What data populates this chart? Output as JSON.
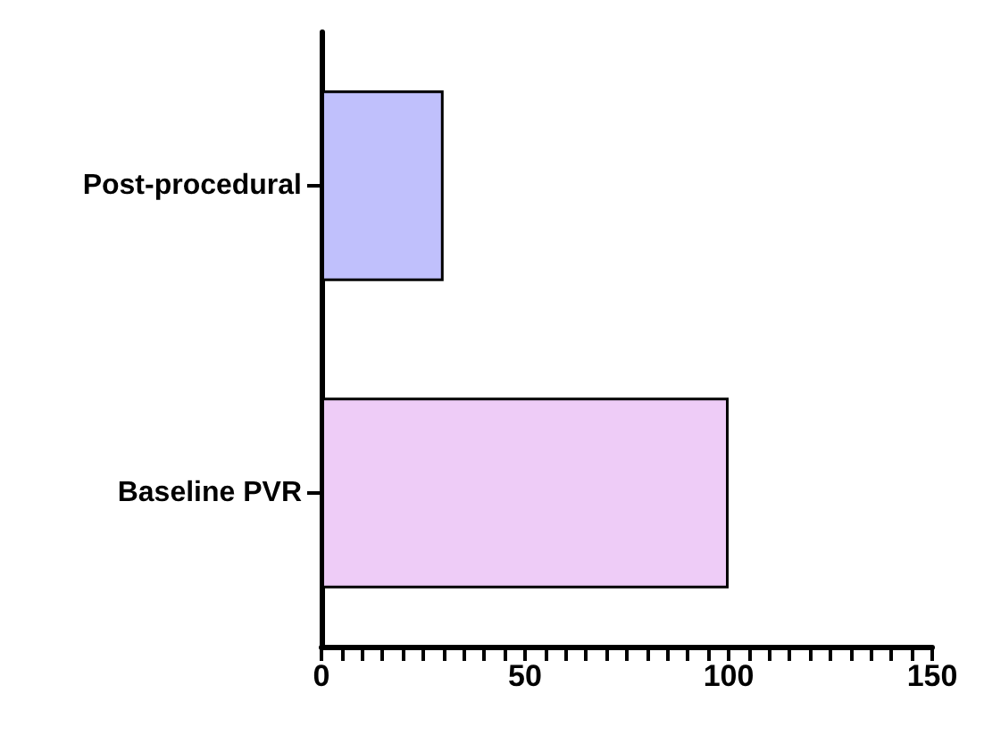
{
  "chart_data": {
    "type": "bar",
    "orientation": "horizontal",
    "categories": [
      "Post-procedural",
      "Baseline PVR"
    ],
    "colors": [
      "#c0c0fc",
      "#eeccf7"
    ],
    "values": [
      30,
      100
    ],
    "xlim": [
      0,
      150
    ],
    "xticks": [
      0,
      {
        "value": 5,
        "label": null
      },
      {
        "value": 10,
        "label": null
      },
      {
        "value": 15,
        "label": null
      },
      {
        "value": 20,
        "label": null
      },
      {
        "value": 25,
        "label": null
      },
      {
        "value": 30,
        "label": null
      },
      {
        "value": 35,
        "label": null
      },
      {
        "value": 40,
        "label": null
      },
      {
        "value": 45,
        "label": null
      },
      50,
      {
        "value": 55,
        "label": null
      },
      {
        "value": 60,
        "label": null
      },
      {
        "value": 65,
        "label": null
      },
      {
        "value": 70,
        "label": null
      },
      {
        "value": 75,
        "label": null
      },
      {
        "value": 80,
        "label": null
      },
      {
        "value": 85,
        "label": null
      },
      {
        "value": 90,
        "label": null
      },
      {
        "value": 95,
        "label": null
      },
      100,
      {
        "value": 105,
        "label": null
      },
      {
        "value": 110,
        "label": null
      },
      {
        "value": 115,
        "label": null
      },
      {
        "value": 120,
        "label": null
      },
      {
        "value": 125,
        "label": null
      },
      {
        "value": 130,
        "label": null
      },
      {
        "value": 135,
        "label": null
      },
      {
        "value": 140,
        "label": null
      },
      {
        "value": 145,
        "label": null
      },
      150
    ],
    "grid": false
  }
}
